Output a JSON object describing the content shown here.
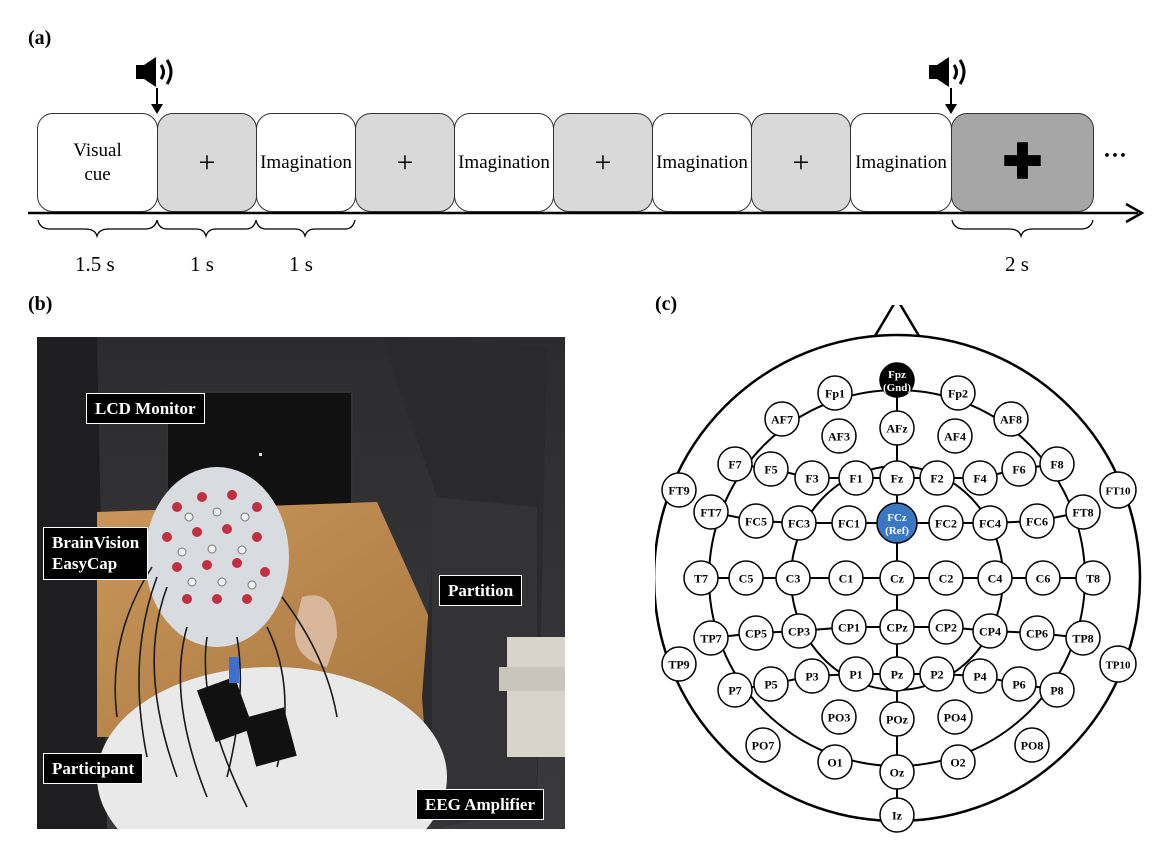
{
  "panels": {
    "a": "(a)",
    "b": "(b)",
    "c": "(c)"
  },
  "timeline": {
    "boxes": [
      {
        "label": "Visual\ncue",
        "kind": "white"
      },
      {
        "label": "+",
        "kind": "fix"
      },
      {
        "label": "Imagination",
        "kind": "white"
      },
      {
        "label": "+",
        "kind": "fix"
      },
      {
        "label": "Imagination",
        "kind": "white"
      },
      {
        "label": "+",
        "kind": "fix"
      },
      {
        "label": "Imagination",
        "kind": "white"
      },
      {
        "label": "+",
        "kind": "fix"
      },
      {
        "label": "Imagination",
        "kind": "white"
      },
      {
        "label": "✚",
        "kind": "rest"
      }
    ],
    "durations": [
      "1.5 s",
      "1 s",
      "1 s",
      "2 s"
    ],
    "ellipsis": "···",
    "colors": {
      "fixation": "#d9d9d9",
      "rest": "#a6a6a6"
    }
  },
  "photo": {
    "labels": {
      "lcd_monitor": "LCD Monitor",
      "brainvision": "BrainVision\nEasyCap",
      "partition": "Partition",
      "participant": "Participant",
      "eeg_amplifier": "EEG Amplifier"
    }
  },
  "montage": {
    "ground_color": "#000000",
    "reference_color": "#3a78c6",
    "electrodes": [
      "Fpz\n(Gnd)",
      "Fp1",
      "Fp2",
      "AF7",
      "AF3",
      "AFz",
      "AF4",
      "AF8",
      "F7",
      "F5",
      "F3",
      "F1",
      "Fz",
      "F2",
      "F4",
      "F6",
      "F8",
      "FT9",
      "FT7",
      "FC5",
      "FC3",
      "FC1",
      "FCz\n(Ref)",
      "FC2",
      "FC4",
      "FC6",
      "FT8",
      "FT10",
      "T7",
      "C5",
      "C3",
      "C1",
      "Cz",
      "C2",
      "C4",
      "C6",
      "T8",
      "TP9",
      "TP7",
      "CP5",
      "CP3",
      "CP1",
      "CPz",
      "CP2",
      "CP4",
      "CP6",
      "TP8",
      "TP10",
      "P7",
      "P5",
      "P3",
      "P1",
      "Pz",
      "P2",
      "P4",
      "P6",
      "P8",
      "PO7",
      "PO3",
      "POz",
      "PO4",
      "PO8",
      "O1",
      "Oz",
      "O2",
      "Iz"
    ]
  }
}
